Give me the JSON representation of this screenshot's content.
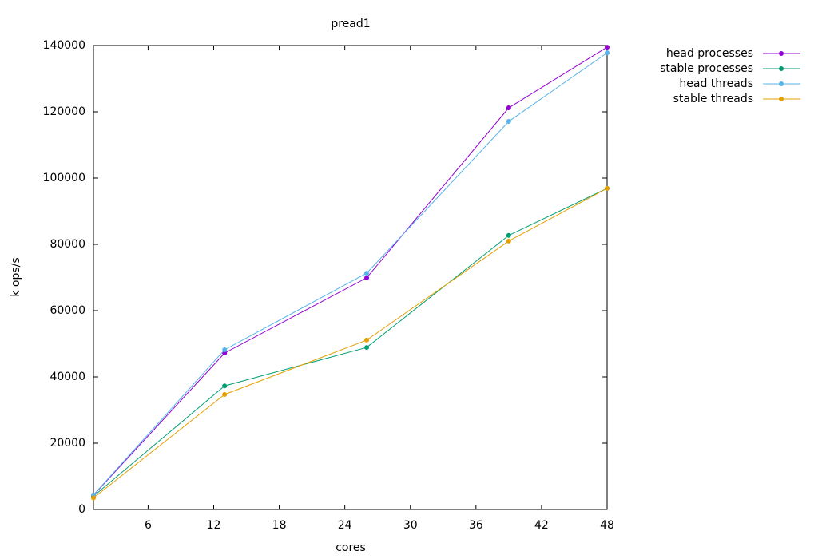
{
  "chart_data": {
    "type": "line",
    "title": "pread1",
    "x_label": "cores",
    "y_label": "k ops/s",
    "x": [
      1,
      13,
      26,
      39,
      48
    ],
    "series": [
      {
        "name": "head processes",
        "color": "#9400d3",
        "values": [
          4300,
          47200,
          69900,
          121200,
          139500
        ]
      },
      {
        "name": "stable processes",
        "color": "#009e73",
        "values": [
          4000,
          37300,
          48900,
          82700,
          96900
        ]
      },
      {
        "name": "head threads",
        "color": "#56b4e9",
        "values": [
          4400,
          48200,
          71300,
          117100,
          137800
        ]
      },
      {
        "name": "stable threads",
        "color": "#e69f00",
        "values": [
          3500,
          34700,
          51100,
          81000,
          96900
        ]
      }
    ],
    "xlim": [
      1,
      48
    ],
    "xticks": [
      6,
      12,
      18,
      24,
      30,
      36,
      42,
      48
    ],
    "ylim": [
      0,
      140000
    ],
    "yticks": [
      0,
      20000,
      40000,
      60000,
      80000,
      100000,
      120000,
      140000
    ],
    "grid": false,
    "legend": "outside-top-right"
  }
}
